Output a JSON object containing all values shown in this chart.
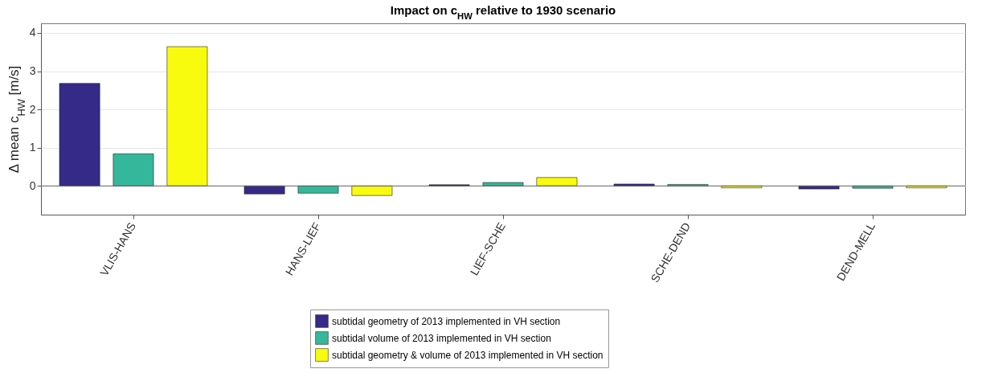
{
  "chart_data": {
    "type": "bar",
    "title": "Impact on c$_{HW}$ relative to 1930 scenario",
    "ylabel": "Δ mean c$_{HW}$ [m/s]",
    "categories": [
      "VLIS-HANS",
      "HANS-LIEF",
      "LIEF-SCHE",
      "SCHE-DEND",
      "DEND-MELL"
    ],
    "series": [
      {
        "name": "subtidal geometry of 2013 implemented in VH section",
        "color": "#352a87",
        "values": [
          2.68,
          -0.21,
          0.03,
          0.05,
          -0.08
        ]
      },
      {
        "name": "subtidal volume of 2013 implemented in VH section",
        "color": "#35b79b",
        "values": [
          0.84,
          -0.19,
          0.09,
          0.04,
          -0.06
        ]
      },
      {
        "name": "subtidal geometry & volume of 2013 implemented in VH section",
        "color": "#f9fb0e",
        "values": [
          3.64,
          -0.25,
          0.22,
          -0.05,
          -0.05
        ]
      }
    ],
    "ylim": [
      -0.75,
      4.25
    ],
    "yticks": [
      0,
      1,
      2,
      3,
      4
    ],
    "grid": "y",
    "legend": "bottom"
  }
}
